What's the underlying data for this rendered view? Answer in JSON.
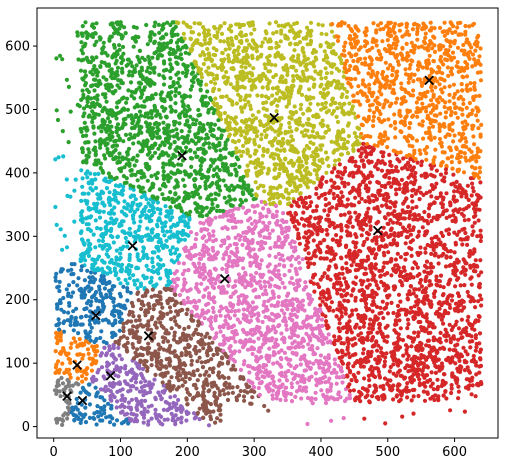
{
  "chart_data": {
    "type": "scatter",
    "title": "",
    "xlabel": "",
    "ylabel": "",
    "xlim": [
      -25,
      665
    ],
    "ylim": [
      -18,
      660
    ],
    "xticks": [
      0,
      100,
      200,
      300,
      400,
      500,
      600
    ],
    "yticks": [
      0,
      100,
      200,
      300,
      400,
      500,
      600
    ],
    "grid": false,
    "legend": "none",
    "point_count_per_cluster": "dense",
    "centroid_marker": "x",
    "centroid_color": "#000000",
    "clusters": [
      {
        "color": "#7f7f7f",
        "centroid": [
          20,
          48
        ]
      },
      {
        "color": "#1f77b4",
        "centroid": [
          63,
          175
        ]
      },
      {
        "color": "#ff7f0e",
        "centroid": [
          35,
          97
        ]
      },
      {
        "color": "#1f77b4",
        "centroid": [
          43,
          41
        ]
      },
      {
        "color": "#9467bd",
        "centroid": [
          85,
          80
        ]
      },
      {
        "color": "#8c564b",
        "centroid": [
          142,
          143
        ]
      },
      {
        "color": "#17becf",
        "centroid": [
          118,
          285
        ]
      },
      {
        "color": "#2ca02c",
        "centroid": [
          192,
          427
        ]
      },
      {
        "color": "#bcbd22",
        "centroid": [
          330,
          487
        ]
      },
      {
        "color": "#ff7f0e",
        "centroid": [
          562,
          546
        ]
      },
      {
        "color": "#e377c2",
        "centroid": [
          256,
          233
        ]
      },
      {
        "color": "#d62728",
        "centroid": [
          485,
          309
        ]
      }
    ]
  }
}
